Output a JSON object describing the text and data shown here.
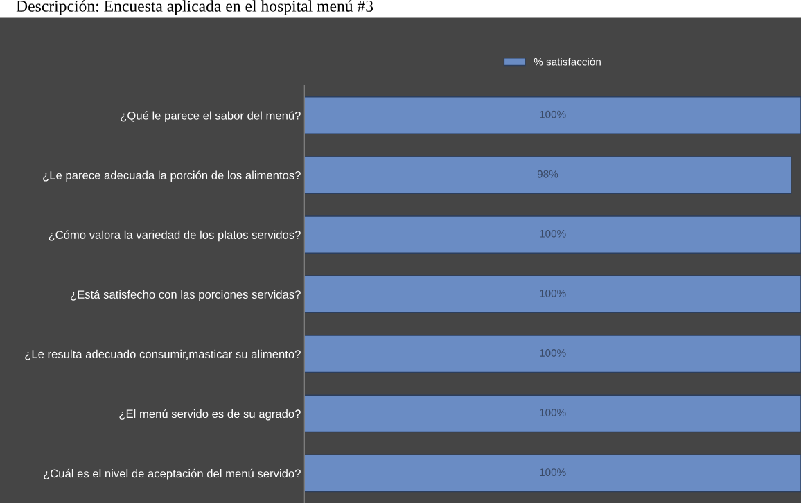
{
  "chart_data": {
    "type": "bar",
    "orientation": "horizontal",
    "title": "Descripción: Encuesta aplicada en el hospital menú #3",
    "categories": [
      "¿Qué le parece el sabor del menú?",
      "¿Le parece adecuada la porción de los alimentos?",
      "¿Cómo valora la variedad de los platos servidos?",
      "¿Está satisfecho con las porciones servidas?",
      "¿Le resulta adecuado consumir,masticar su alimento?",
      "¿El menú servido es de su agrado?",
      "¿Cuál es el nivel de aceptación del menú servido?"
    ],
    "series": [
      {
        "name": "% satisfacción",
        "color": "#6a8cc4",
        "values": [
          100,
          98,
          100,
          100,
          100,
          100,
          100
        ],
        "value_labels": [
          "100%",
          "98%",
          "100%",
          "100%",
          "100%",
          "100%",
          "100%"
        ]
      }
    ],
    "xlim": [
      0,
      100
    ],
    "tick_labels": "y",
    "legend": "top",
    "grid": false
  }
}
